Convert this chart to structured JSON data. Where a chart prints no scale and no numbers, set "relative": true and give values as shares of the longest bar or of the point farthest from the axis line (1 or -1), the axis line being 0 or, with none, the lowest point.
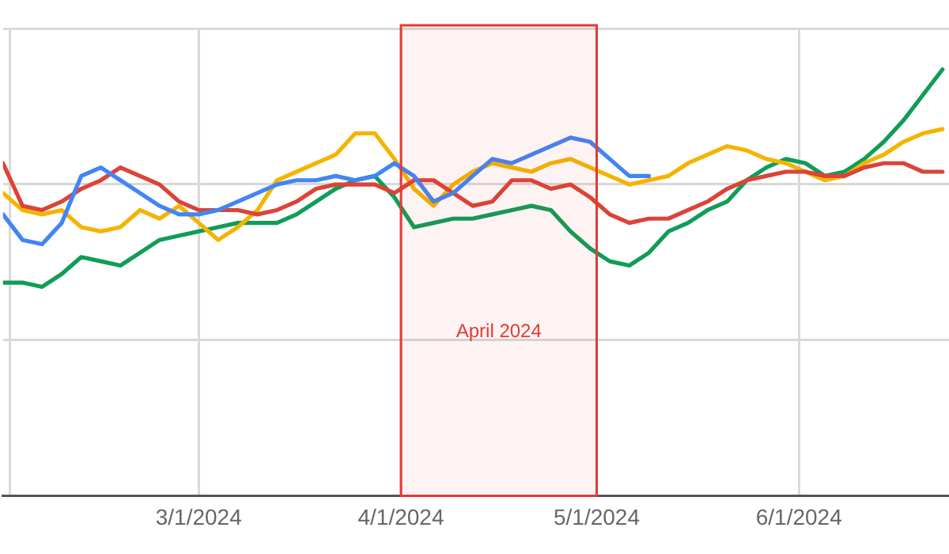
{
  "chart_data": {
    "type": "line",
    "relative": true,
    "grid": true,
    "legend": false,
    "marker": "none",
    "line_style": "solid",
    "x": [
      "2024-01-31",
      "2024-02-03",
      "2024-02-06",
      "2024-02-09",
      "2024-02-12",
      "2024-02-15",
      "2024-02-18",
      "2024-02-21",
      "2024-02-24",
      "2024-02-27",
      "2024-03-01",
      "2024-03-04",
      "2024-03-07",
      "2024-03-10",
      "2024-03-13",
      "2024-03-16",
      "2024-03-19",
      "2024-03-22",
      "2024-03-25",
      "2024-03-28",
      "2024-03-31",
      "2024-04-03",
      "2024-04-06",
      "2024-04-09",
      "2024-04-12",
      "2024-04-15",
      "2024-04-18",
      "2024-04-21",
      "2024-04-24",
      "2024-04-27",
      "2024-04-30",
      "2024-05-03",
      "2024-05-06",
      "2024-05-09",
      "2024-05-12",
      "2024-05-15",
      "2024-05-18",
      "2024-05-21",
      "2024-05-24",
      "2024-05-27",
      "2024-05-30",
      "2024-06-02",
      "2024-06-05",
      "2024-06-08",
      "2024-06-11",
      "2024-06-14",
      "2024-06-17",
      "2024-06-20",
      "2024-06-23"
    ],
    "xlim": [
      "2024-01-31",
      "2024-06-24"
    ],
    "xticks": [
      {
        "value": "2024-02-01",
        "label": null
      },
      {
        "value": "2024-03-01",
        "label": "3/1/2024"
      },
      {
        "value": "2024-04-01",
        "label": "4/1/2024"
      },
      {
        "value": "2024-05-01",
        "label": "5/1/2024"
      },
      {
        "value": "2024-06-01",
        "label": "6/1/2024"
      }
    ],
    "series": [
      {
        "color": "#4285f4",
        "values": [
          0.66,
          0.6,
          0.59,
          0.64,
          0.75,
          0.77,
          0.74,
          0.71,
          0.68,
          0.66,
          0.66,
          0.67,
          0.69,
          0.71,
          0.73,
          0.74,
          0.74,
          0.75,
          0.74,
          0.75,
          0.78,
          0.75,
          0.69,
          0.71,
          0.75,
          0.79,
          0.78,
          0.8,
          0.82,
          0.84,
          0.83,
          0.79,
          0.75,
          0.75,
          null,
          null,
          null,
          null,
          null,
          null,
          null,
          null,
          null,
          null,
          null,
          null,
          null,
          null,
          null
        ]
      },
      {
        "color": "#db4437",
        "values": [
          0.78,
          0.68,
          0.67,
          0.69,
          0.72,
          0.74,
          0.77,
          0.75,
          0.73,
          0.69,
          0.67,
          0.67,
          0.67,
          0.66,
          0.67,
          0.69,
          0.72,
          0.73,
          0.73,
          0.73,
          0.71,
          0.74,
          0.74,
          0.71,
          0.68,
          0.69,
          0.74,
          0.74,
          0.72,
          0.73,
          0.7,
          0.66,
          0.64,
          0.65,
          0.65,
          0.67,
          0.69,
          0.72,
          0.74,
          0.75,
          0.76,
          0.76,
          0.75,
          0.75,
          0.77,
          0.78,
          0.78,
          0.76,
          0.76
        ]
      },
      {
        "color": "#f4b400",
        "values": [
          0.71,
          0.67,
          0.66,
          0.67,
          0.63,
          0.62,
          0.63,
          0.67,
          0.65,
          0.68,
          0.64,
          0.6,
          0.63,
          0.67,
          0.74,
          0.76,
          0.78,
          0.8,
          0.85,
          0.85,
          0.79,
          0.72,
          0.68,
          0.73,
          0.76,
          0.78,
          0.77,
          0.76,
          0.78,
          0.79,
          0.77,
          0.75,
          0.73,
          0.74,
          0.75,
          0.78,
          0.8,
          0.82,
          0.81,
          0.79,
          0.78,
          0.76,
          0.74,
          0.75,
          0.78,
          0.8,
          0.83,
          0.85,
          0.86
        ]
      },
      {
        "color": "#0f9d58",
        "values": [
          0.5,
          0.5,
          0.49,
          0.52,
          0.56,
          0.55,
          0.54,
          0.57,
          0.6,
          0.61,
          0.62,
          0.63,
          0.64,
          0.64,
          0.64,
          0.66,
          0.69,
          0.72,
          0.74,
          0.75,
          0.7,
          0.63,
          0.64,
          0.65,
          0.65,
          0.66,
          0.67,
          0.68,
          0.67,
          0.62,
          0.58,
          0.55,
          0.54,
          0.57,
          0.62,
          0.64,
          0.67,
          0.69,
          0.74,
          0.77,
          0.79,
          0.78,
          0.75,
          0.76,
          0.79,
          0.83,
          0.88,
          0.94,
          1
        ]
      }
    ],
    "bands": [
      {
        "axis": "x",
        "from": "2024-04-01",
        "to": "2024-05-01",
        "label": "April 2024",
        "color": "#e53935"
      }
    ]
  }
}
